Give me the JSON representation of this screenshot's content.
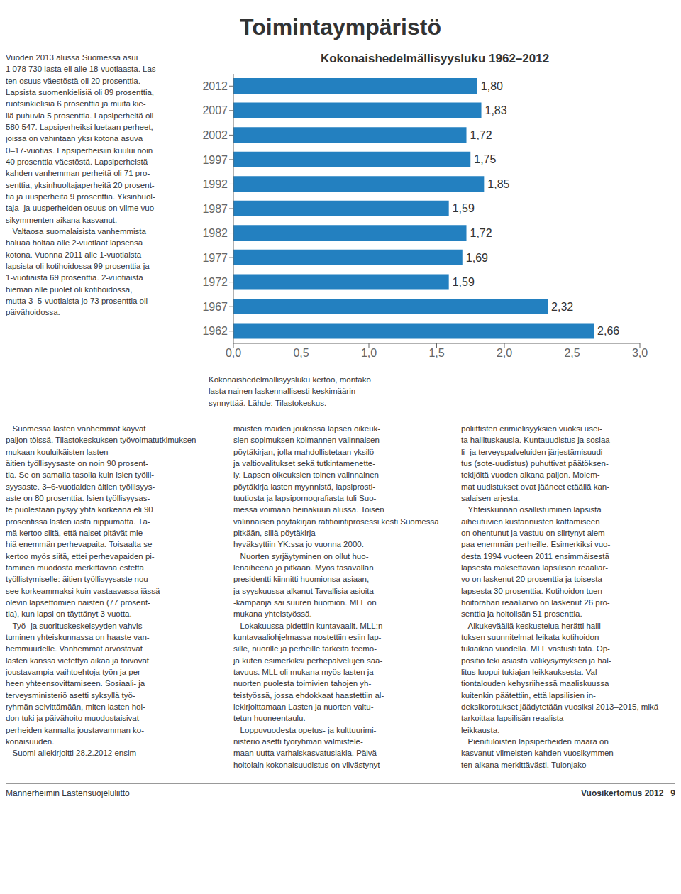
{
  "chart_data": {
    "type": "bar",
    "orientation": "horizontal",
    "title": "Kokonaishedelmällisyysluku 1962–2012",
    "categories": [
      "2012",
      "2007",
      "2002",
      "1997",
      "1992",
      "1987",
      "1982",
      "1977",
      "1972",
      "1967",
      "1962"
    ],
    "values": [
      1.8,
      1.83,
      1.72,
      1.75,
      1.85,
      1.59,
      1.72,
      1.69,
      1.59,
      2.32,
      2.66
    ],
    "data_labels": true,
    "value_labels": [
      "1,80",
      "1,83",
      "1,72",
      "1,75",
      "1,85",
      "1,59",
      "1,72",
      "1,69",
      "1,59",
      "2,32",
      "2,66"
    ],
    "color": "#2380c0",
    "xlim": [
      0,
      3.0
    ],
    "xticks": [
      {
        "value": 0.0,
        "label": "0,0"
      },
      {
        "value": 0.5,
        "label": "0,5"
      },
      {
        "value": 1.0,
        "label": "1,0"
      },
      {
        "value": 1.5,
        "label": "1,5"
      },
      {
        "value": 2.0,
        "label": "2,0"
      },
      {
        "value": 2.5,
        "label": "2,5"
      },
      {
        "value": 3.0,
        "label": "3,0"
      }
    ],
    "grid": false,
    "annotations": [
      "Toimintaympäristö",
      "Vuoden 2013 alussa Suomessa asui\n1 078 730 lasta eli alle 18-vuotiaasta. Las-\nten osuus väestöstä oli 20 prosenttia.\nLapsista suomenkielisiä oli 89 prosenttia,\nruotsinkielisiä 6 prosenttia ja muita kie-\nliä puhuvia 5 prosenttia. Lapsiperheitä oli\n580 547. Lapsiperheiksi luetaan perheet,\njoissa on vähintään yksi kotona asuva\n0–17-vuotias. Lapsiperheisiin kuului noin\n40 prosenttia väestöstä. Lapsiperheistä\nkahden vanhemman perheitä oli 71 pro-\nsenttia, yksinhuoltajaperheitä 20 prosent-\ntia ja uusperheitä 9 prosenttia. Yksinhuol-\ntaja- ja uusperheiden osuus on viime vuo-\nsikymmenten aikana kasvanut.\n   Valtaosa suomalaisista vanhemmista\nhaluaa hoitaa alle 2-vuotiaat lapsensa\nkotona. Vuonna 2011 alle 1-vuotiaista\nlapsista oli kotihoidossa 99 prosenttia ja\n1-vuotiaista 69 prosenttia. 2-vuotiaista\nhieman alle puolet oli kotihoidossa,\nmutta 3–5-vuotiaista jo 73 prosenttia oli\npäivähoidossa.",
      "Kokonaishedelmällisyysluku kertoo, montako\nlasta nainen laskennallisesti keskimäärin\nsynnyttää. Lähde: Tilastokeskus.",
      "   Suomessa lasten vanhemmat käyvät\npaljon töissä. Tilastokeskuksen työvoimatutkimuksen mukaan kouluikäisten lasten\näitien työllisyysaste on noin 90 prosent-\ntia. Se on samalla tasolla kuin isien työlli-\nsyysaste. 3–6-vuotiaiden äitien työllisyys-\naste on 80 prosenttia. Isien työllisyysas-\nte puolestaan pysyy yhtä korkeana eli 90\nprosentissa lasten iästä riippumatta. Tä-\nmä kertoo siitä, että naiset pitävät mie-\nhiä enemmän perhevapaita. Toisaalta se\nkertoo myös siitä, ettei perhevapaiden pi-\ntäminen muodosta merkittävää estettä\ntyöllistymiselle: äitien työllisyysaste nou-\nsee korkeammaksi kuin vastaavassa iässä\nolevin lapsettomien naisten (77 prosent-\ntia), kun lapsi on täyttänyt 3 vuotta.\n   Työ- ja suorituskeskeisyyden vahvis-\ntuminen yhteiskunnassa on haaste van-\nhemmuudelle. Vanhemmat arvostavat\nlasten kanssa vietettyä aikaa ja toivovat\njoustavampia vaihtoehtoja työn ja per-\nheen yhteensovittamiseen. Sosiaali- ja\nterveysministeriö asetti syksyllä työ-\nryhmän selvittämään, miten lasten hoi-\ndon tuki ja päivähoito muodostaisivat\nperheiden kannalta joustavamman ko-\nkonaisuuden.\n   Suomi allekirjoitti 28.2.2012 ensim-",
      "mäisten maiden joukossa lapsen oikeuk-\nsien sopimuksen kolmannen valinnaisen\npöytäkirjan, jolla mahdollistetaan yksilö-\nja valtiovalitukset sekä tutkintamenette-\nly. Lapsen oikeuksien toinen valinnainen\npöytäkirja lasten myynnistä, lapsiprosti-\ntuutiosta ja lapsipornografiasta tuli Suo-\nmessa voimaan heinäkuun alussa. Toisen\nvalinnaisen pöytäkirjan ratifiointiprosessi kesti Suomessa pitkään, sillä pöytäkirja\nhyväksyttiin YK:ssa jo vuonna 2000.\n   Nuorten syrjäytyminen on ollut huo-\nlenaiheena jo pitkään. Myös tasavallan\npresidentti kiinnitti huomionsa asiaan,\nja syyskuussa alkanut Tavallisia asioita\n-kampanja sai suuren huomion. MLL on\nmukana yhteistyössä.\n   Lokakuussa pidettiin kuntavaalit. MLL:n\nkuntavaaliohjelmassa nostettiin esiin lap-\nsille, nuorille ja perheille tärkeitä teemo-\nja kuten esimerkiksi perhepalvelujen saa-\ntavuus. MLL oli mukana myös lasten ja\nnuorten puolesta toimivien tahojen yh-\nteistyössä, jossa ehdokkaat haastettiin al-\nlekirjoittamaan Lasten ja nuorten valtu-\ntetun huoneentaulu.\n   Loppuvuodesta opetus- ja kulttuurimi-\nnisteriö asetti työryhmän valmistele-\nmaan uutta varhaiskasvatuslakia. Päivä-\nhoitolain kokonaisuudistus on viivästynyt",
      "poliittisten erimielisyyksien vuoksi usei-\nta hallituskausia. Kuntauudistus ja sosiaa-\nli- ja terveyspalveluiden järjestämisuudi-\ntus (sote-uudistus) puhuttivat päätöksen-\ntekijöitä vuoden aikana paljon. Molem-\nmat uudistukset ovat jääneet etäällä kan-\nsalaisen arjesta.\n   Yhteiskunnan osallistuminen lapsista\naiheutuvien kustannusten kattamiseen\non ohentunut ja vastuu on siirtynyt aiem-\npaa enemmän perheille. Esimerkiksi vuo-\ndesta 1994 vuoteen 2011 ensimmäisestä\nlapsesta maksettavan lapsilisän reaaliar-\nvo on laskenut 20 prosenttia ja toisesta\nlapsesta 30 prosenttia. Kotihoidon tuen\nhoitorahan reaaliarvo on laskenut 26 pro-\nsenttia ja hoitolisän 51 prosenttia.\n   Alkukeväällä keskustelua herätti halli-\ntuksen suunnitelmat leikata kotihoidon\ntukiaikaa vuodella. MLL vastusti tätä. Op-\npositio teki asiasta välikysymyksen ja hal-\nlitus luopui tukiajan leikkauksesta. Val-\ntiontalouden kehysriihessä maaliskuussa\nkuitenkin päätettiin, että lapsilisien in-\ndeksikorotukset jäädytetään vuosiksi 2013–2015, mikä tarkoittaa lapsilisän reaalista\nleikkausta.\n   Pienituloisten lapsiperheiden määrä on\nkasvanut viimeisten kahden vuosikymmen-\nten aikana merkittävästi. Tulonjako-",
      "Mannerheimin Lastensuojeluliitto",
      "Vuosikertomus 2012   9"
    ]
  }
}
